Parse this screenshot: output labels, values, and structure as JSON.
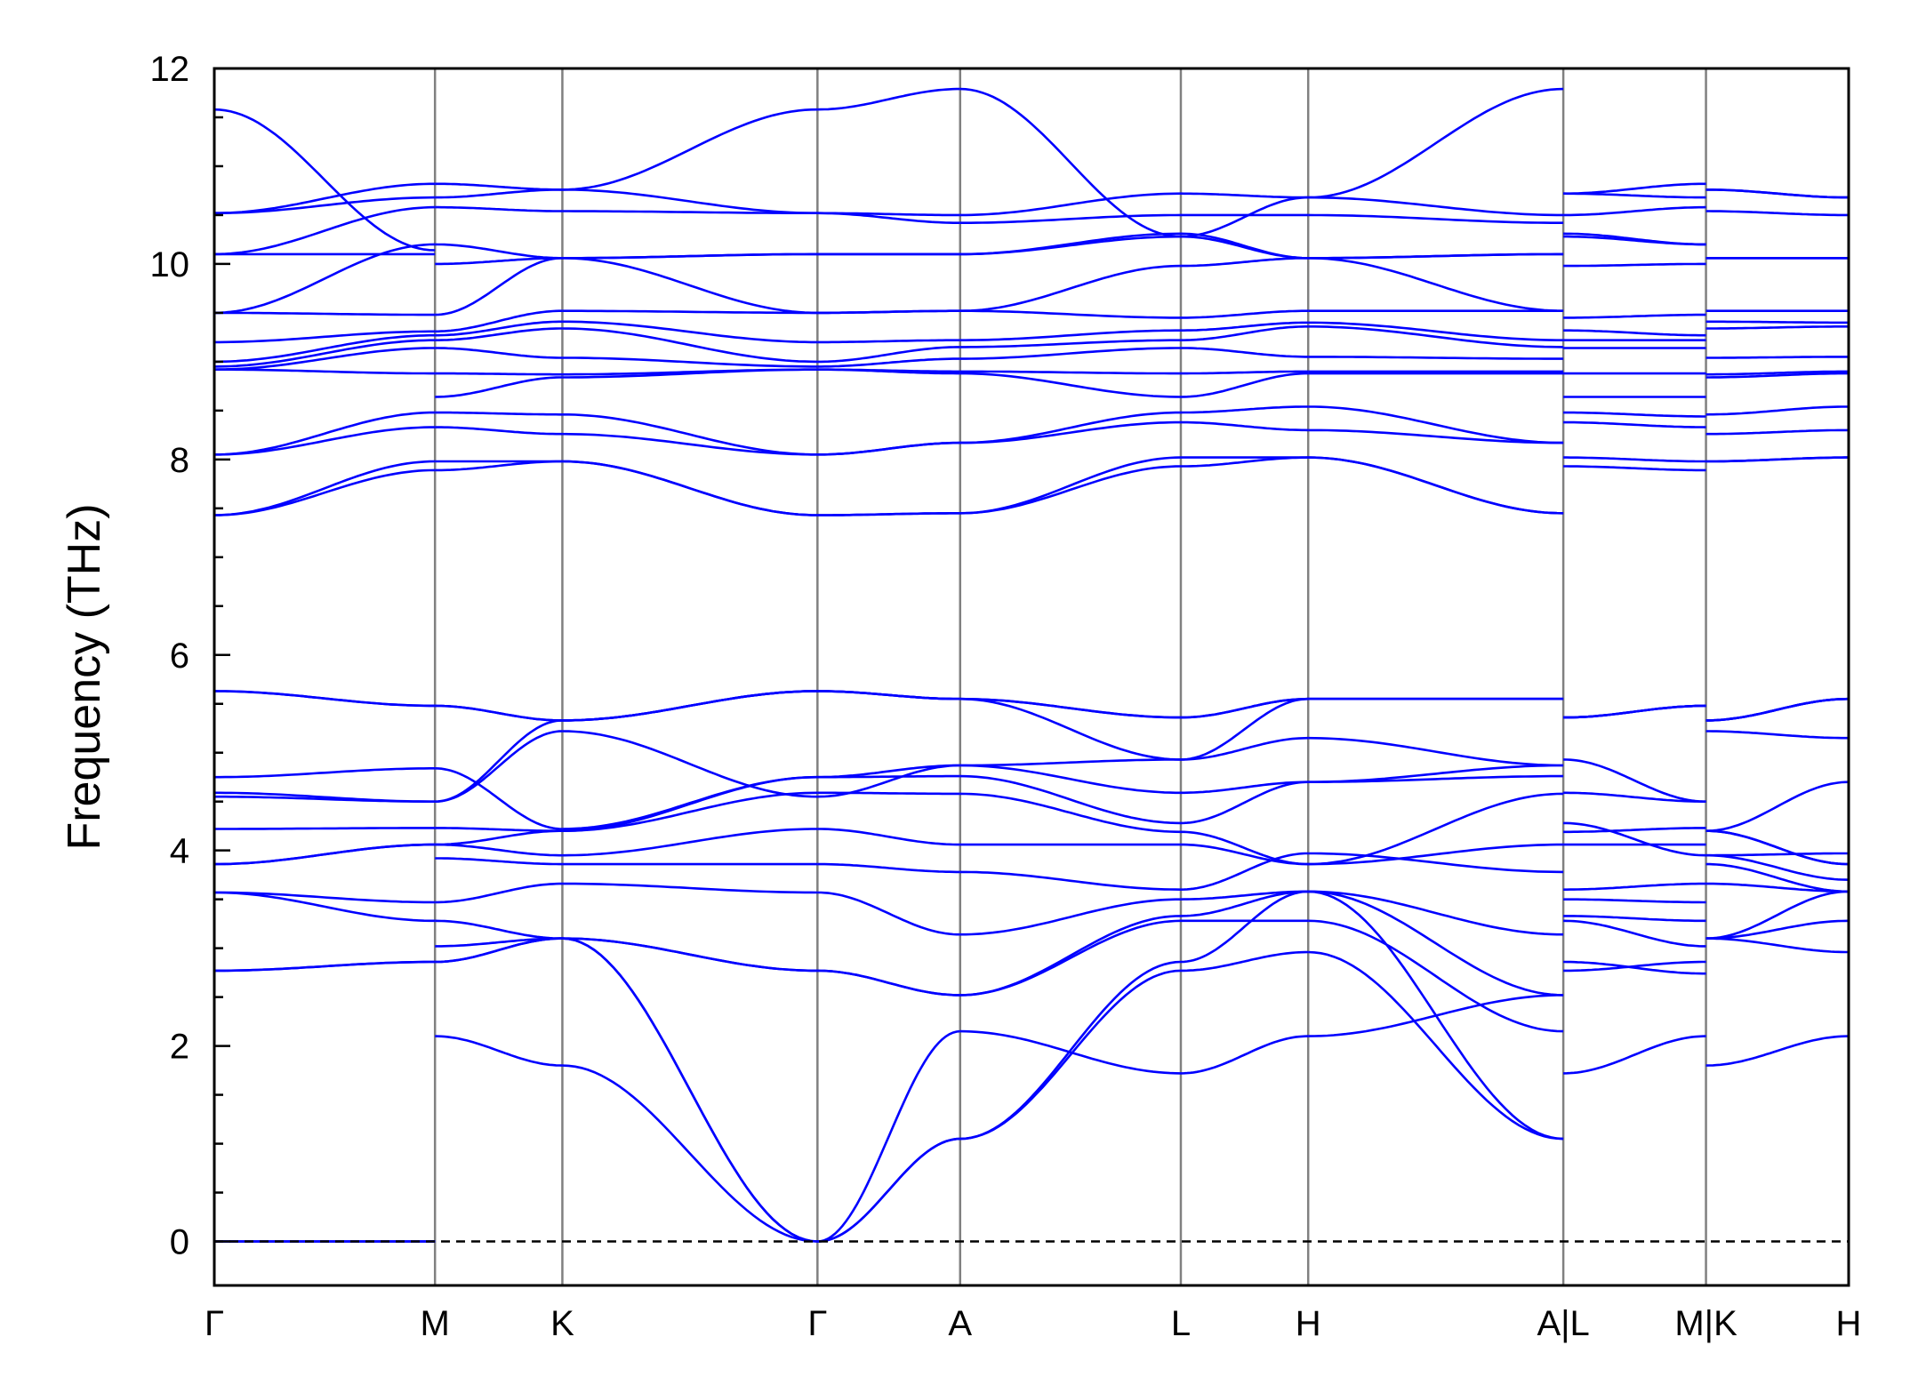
{
  "chart_data": {
    "type": "line",
    "title": "",
    "ylabel": "Frequency (THz)",
    "xlabel": "",
    "ylim": [
      -0.45,
      12
    ],
    "yticks": [
      0,
      2,
      4,
      6,
      8,
      10,
      12
    ],
    "y_minor_step": 0.5,
    "grid": false,
    "legend": "none",
    "colors": {
      "bands": "#0000ff",
      "kpath_lines": "#808080",
      "zero_line": "#000000",
      "frame": "#000000"
    },
    "kpoints": [
      {
        "label": "Γ",
        "x": 0.0
      },
      {
        "label": "M",
        "x": 0.577
      },
      {
        "label": "K",
        "x": 0.91
      },
      {
        "label": "Γ",
        "x": 1.577
      },
      {
        "label": "A",
        "x": 1.95
      },
      {
        "label": "L",
        "x": 2.527
      },
      {
        "label": "H",
        "x": 2.86
      },
      {
        "label": "A|L",
        "x": 3.527
      },
      {
        "label": "M|K",
        "x": 3.9
      },
      {
        "label": "H",
        "x": 4.273
      }
    ],
    "segments": [
      {
        "from": 0.0,
        "to": 0.577,
        "ends": [
          [
            0,
            0
          ],
          [
            0,
            0
          ],
          [
            0,
            0
          ],
          [
            2.77,
            2.86
          ],
          [
            2.77,
            2.86
          ],
          [
            3.57,
            3.28
          ],
          [
            3.57,
            3.47
          ],
          [
            3.86,
            4.06
          ],
          [
            3.86,
            4.06
          ],
          [
            4.22,
            4.23
          ],
          [
            4.55,
            4.5
          ],
          [
            4.59,
            4.5
          ],
          [
            4.75,
            4.84
          ],
          [
            5.63,
            5.48
          ],
          [
            5.63,
            5.48
          ],
          [
            7.43,
            7.89
          ],
          [
            7.43,
            7.98
          ],
          [
            8.05,
            8.33
          ],
          [
            8.05,
            8.48
          ],
          [
            8.92,
            8.88
          ],
          [
            8.92,
            9.14
          ],
          [
            8.95,
            9.22
          ],
          [
            9.0,
            9.27
          ],
          [
            9.2,
            9.31
          ],
          [
            9.5,
            9.48
          ],
          [
            9.5,
            10.2
          ],
          [
            10.1,
            10.1
          ],
          [
            10.1,
            10.58
          ],
          [
            10.52,
            10.68
          ],
          [
            10.52,
            10.82
          ],
          [
            11.58,
            10.14
          ]
        ]
      },
      {
        "from": 0.577,
        "to": 0.91,
        "ends": [
          [
            2.1,
            1.8
          ],
          [
            2.86,
            3.1
          ],
          [
            2.86,
            3.1
          ],
          [
            3.02,
            3.1
          ],
          [
            3.28,
            3.1
          ],
          [
            3.47,
            3.66
          ],
          [
            3.92,
            3.86
          ],
          [
            4.06,
            3.95
          ],
          [
            4.06,
            4.2
          ],
          [
            4.23,
            4.2
          ],
          [
            4.5,
            5.22
          ],
          [
            4.84,
            4.22
          ],
          [
            4.5,
            5.33
          ],
          [
            5.48,
            5.33
          ],
          [
            5.48,
            5.33
          ],
          [
            7.89,
            7.98
          ],
          [
            7.98,
            7.98
          ],
          [
            8.33,
            8.26
          ],
          [
            8.48,
            8.46
          ],
          [
            8.64,
            8.84
          ],
          [
            8.88,
            8.87
          ],
          [
            9.14,
            9.04
          ],
          [
            9.22,
            9.34
          ],
          [
            9.27,
            9.41
          ],
          [
            9.31,
            9.52
          ],
          [
            9.48,
            10.06
          ],
          [
            10.0,
            10.06
          ],
          [
            10.2,
            10.06
          ],
          [
            10.58,
            10.54
          ],
          [
            10.68,
            10.76
          ],
          [
            10.82,
            10.76
          ]
        ]
      },
      {
        "from": 0.91,
        "to": 1.577,
        "ends": [
          [
            1.8,
            0
          ],
          [
            3.1,
            0
          ],
          [
            3.1,
            0
          ],
          [
            3.1,
            2.77
          ],
          [
            3.1,
            2.77
          ],
          [
            3.66,
            3.57
          ],
          [
            3.86,
            3.86
          ],
          [
            3.95,
            4.22
          ],
          [
            4.2,
            4.59
          ],
          [
            4.2,
            4.75
          ],
          [
            5.22,
            4.55
          ],
          [
            4.22,
            4.75
          ],
          [
            5.33,
            5.63
          ],
          [
            5.33,
            5.63
          ],
          [
            5.33,
            5.63
          ],
          [
            7.98,
            7.43
          ],
          [
            7.98,
            7.43
          ],
          [
            8.26,
            8.05
          ],
          [
            8.46,
            8.05
          ],
          [
            8.84,
            8.92
          ],
          [
            8.87,
            8.92
          ],
          [
            9.04,
            8.95
          ],
          [
            9.34,
            9.0
          ],
          [
            9.41,
            9.2
          ],
          [
            9.52,
            9.5
          ],
          [
            10.06,
            9.5
          ],
          [
            10.06,
            10.1
          ],
          [
            10.06,
            10.1
          ],
          [
            10.54,
            10.52
          ],
          [
            10.76,
            10.52
          ],
          [
            10.76,
            11.58
          ]
        ]
      },
      {
        "from": 1.577,
        "to": 1.95,
        "ends": [
          [
            0,
            1.05
          ],
          [
            0,
            1.05
          ],
          [
            0,
            2.15
          ],
          [
            2.77,
            2.52
          ],
          [
            2.77,
            2.52
          ],
          [
            3.57,
            3.14
          ],
          [
            3.86,
            3.78
          ],
          [
            4.22,
            4.06
          ],
          [
            4.59,
            4.58
          ],
          [
            4.75,
            4.76
          ],
          [
            4.55,
            4.87
          ],
          [
            4.75,
            4.87
          ],
          [
            5.63,
            5.55
          ],
          [
            5.63,
            5.55
          ],
          [
            5.63,
            5.55
          ],
          [
            7.43,
            7.45
          ],
          [
            7.43,
            7.45
          ],
          [
            8.05,
            8.17
          ],
          [
            8.05,
            8.17
          ],
          [
            8.92,
            8.88
          ],
          [
            8.92,
            8.9
          ],
          [
            8.95,
            9.03
          ],
          [
            9.0,
            9.15
          ],
          [
            9.2,
            9.22
          ],
          [
            9.5,
            9.52
          ],
          [
            9.5,
            9.52
          ],
          [
            10.1,
            10.1
          ],
          [
            10.1,
            10.1
          ],
          [
            10.52,
            10.42
          ],
          [
            10.52,
            10.5
          ],
          [
            11.58,
            11.79
          ]
        ]
      },
      {
        "from": 1.95,
        "to": 2.527,
        "ends": [
          [
            2.15,
            1.72
          ],
          [
            1.05,
            2.77
          ],
          [
            1.05,
            2.86
          ],
          [
            2.52,
            3.28
          ],
          [
            2.52,
            3.33
          ],
          [
            3.14,
            3.5
          ],
          [
            3.78,
            3.6
          ],
          [
            4.06,
            4.06
          ],
          [
            4.58,
            4.19
          ],
          [
            4.76,
            4.28
          ],
          [
            4.87,
            4.59
          ],
          [
            4.87,
            4.93
          ],
          [
            5.55,
            5.36
          ],
          [
            5.55,
            4.93
          ],
          [
            5.55,
            5.36
          ],
          [
            7.45,
            7.93
          ],
          [
            7.45,
            8.02
          ],
          [
            8.17,
            8.38
          ],
          [
            8.17,
            8.48
          ],
          [
            8.88,
            8.64
          ],
          [
            8.9,
            8.88
          ],
          [
            9.03,
            9.14
          ],
          [
            9.15,
            9.22
          ],
          [
            9.22,
            9.32
          ],
          [
            9.52,
            9.45
          ],
          [
            9.52,
            9.98
          ],
          [
            10.1,
            10.28
          ],
          [
            10.1,
            10.31
          ],
          [
            10.42,
            10.5
          ],
          [
            10.5,
            10.72
          ],
          [
            11.79,
            10.28
          ]
        ]
      },
      {
        "from": 2.527,
        "to": 2.86,
        "ends": [
          [
            1.72,
            2.1
          ],
          [
            2.77,
            2.96
          ],
          [
            2.86,
            3.58
          ],
          [
            3.28,
            3.28
          ],
          [
            3.33,
            3.58
          ],
          [
            3.5,
            3.58
          ],
          [
            3.6,
            3.97
          ],
          [
            4.06,
            3.86
          ],
          [
            4.19,
            3.86
          ],
          [
            4.28,
            4.7
          ],
          [
            4.59,
            4.7
          ],
          [
            4.93,
            5.15
          ],
          [
            5.36,
            5.55
          ],
          [
            4.93,
            5.55
          ],
          [
            5.36,
            5.55
          ],
          [
            7.93,
            8.02
          ],
          [
            8.02,
            8.02
          ],
          [
            8.38,
            8.3
          ],
          [
            8.48,
            8.54
          ],
          [
            8.64,
            8.88
          ],
          [
            8.88,
            8.9
          ],
          [
            9.14,
            9.05
          ],
          [
            9.22,
            9.36
          ],
          [
            9.32,
            9.4
          ],
          [
            9.45,
            9.52
          ],
          [
            9.98,
            10.06
          ],
          [
            10.28,
            10.06
          ],
          [
            10.31,
            10.06
          ],
          [
            10.5,
            10.5
          ],
          [
            10.72,
            10.68
          ],
          [
            10.28,
            10.68
          ]
        ]
      },
      {
        "from": 2.86,
        "to": 3.527,
        "ends": [
          [
            2.1,
            2.52
          ],
          [
            2.96,
            1.05
          ],
          [
            3.58,
            1.05
          ],
          [
            3.28,
            2.15
          ],
          [
            3.58,
            2.52
          ],
          [
            3.58,
            3.14
          ],
          [
            3.97,
            3.78
          ],
          [
            3.86,
            4.06
          ],
          [
            3.86,
            4.58
          ],
          [
            4.7,
            4.76
          ],
          [
            4.7,
            4.87
          ],
          [
            5.15,
            4.87
          ],
          [
            5.55,
            5.55
          ],
          [
            5.55,
            5.55
          ],
          [
            5.55,
            5.55
          ],
          [
            8.02,
            7.45
          ],
          [
            8.02,
            7.45
          ],
          [
            8.3,
            8.17
          ],
          [
            8.54,
            8.17
          ],
          [
            8.88,
            8.88
          ],
          [
            8.9,
            8.9
          ],
          [
            9.05,
            9.03
          ],
          [
            9.36,
            9.15
          ],
          [
            9.4,
            9.22
          ],
          [
            9.52,
            9.52
          ],
          [
            10.06,
            9.52
          ],
          [
            10.06,
            10.1
          ],
          [
            10.06,
            10.1
          ],
          [
            10.5,
            10.42
          ],
          [
            10.68,
            10.5
          ],
          [
            10.68,
            11.79
          ]
        ]
      },
      {
        "from": 3.527,
        "to": 3.9,
        "ends": [
          [
            1.72,
            2.1
          ],
          [
            2.77,
            2.86
          ],
          [
            2.86,
            2.74
          ],
          [
            3.28,
            3.02
          ],
          [
            3.33,
            3.28
          ],
          [
            3.5,
            3.47
          ],
          [
            3.6,
            3.66
          ],
          [
            4.06,
            4.06
          ],
          [
            4.19,
            4.23
          ],
          [
            4.28,
            3.95
          ],
          [
            4.59,
            4.5
          ],
          [
            4.93,
            4.5
          ],
          [
            5.36,
            5.48
          ],
          [
            5.36,
            5.48
          ],
          [
            5.36,
            5.48
          ],
          [
            7.93,
            7.89
          ],
          [
            8.02,
            7.98
          ],
          [
            8.38,
            8.33
          ],
          [
            8.48,
            8.44
          ],
          [
            8.64,
            8.64
          ],
          [
            8.88,
            8.88
          ],
          [
            9.14,
            9.14
          ],
          [
            9.22,
            9.22
          ],
          [
            9.32,
            9.27
          ],
          [
            9.45,
            9.48
          ],
          [
            9.98,
            10.0
          ],
          [
            10.28,
            10.2
          ],
          [
            10.31,
            10.2
          ],
          [
            10.5,
            10.58
          ],
          [
            10.72,
            10.68
          ],
          [
            10.72,
            10.82
          ]
        ]
      },
      {
        "from": 3.9,
        "to": 4.273,
        "ends": [
          [
            1.8,
            2.1
          ],
          [
            3.1,
            2.96
          ],
          [
            3.1,
            3.28
          ],
          [
            3.1,
            3.58
          ],
          [
            3.66,
            3.58
          ],
          [
            3.86,
            3.58
          ],
          [
            3.95,
            3.7
          ],
          [
            3.95,
            3.97
          ],
          [
            4.2,
            3.86
          ],
          [
            4.2,
            3.86
          ],
          [
            4.2,
            4.7
          ],
          [
            5.22,
            5.15
          ],
          [
            5.33,
            5.55
          ],
          [
            5.33,
            5.55
          ],
          [
            5.33,
            5.55
          ],
          [
            7.98,
            8.02
          ],
          [
            7.98,
            8.02
          ],
          [
            8.26,
            8.3
          ],
          [
            8.46,
            8.54
          ],
          [
            8.84,
            8.88
          ],
          [
            8.87,
            8.9
          ],
          [
            9.04,
            9.05
          ],
          [
            9.34,
            9.36
          ],
          [
            9.41,
            9.4
          ],
          [
            9.52,
            9.52
          ],
          [
            10.06,
            10.06
          ],
          [
            10.06,
            10.06
          ],
          [
            10.06,
            10.06
          ],
          [
            10.54,
            10.5
          ],
          [
            10.76,
            10.68
          ],
          [
            10.76,
            10.68
          ]
        ]
      }
    ]
  }
}
